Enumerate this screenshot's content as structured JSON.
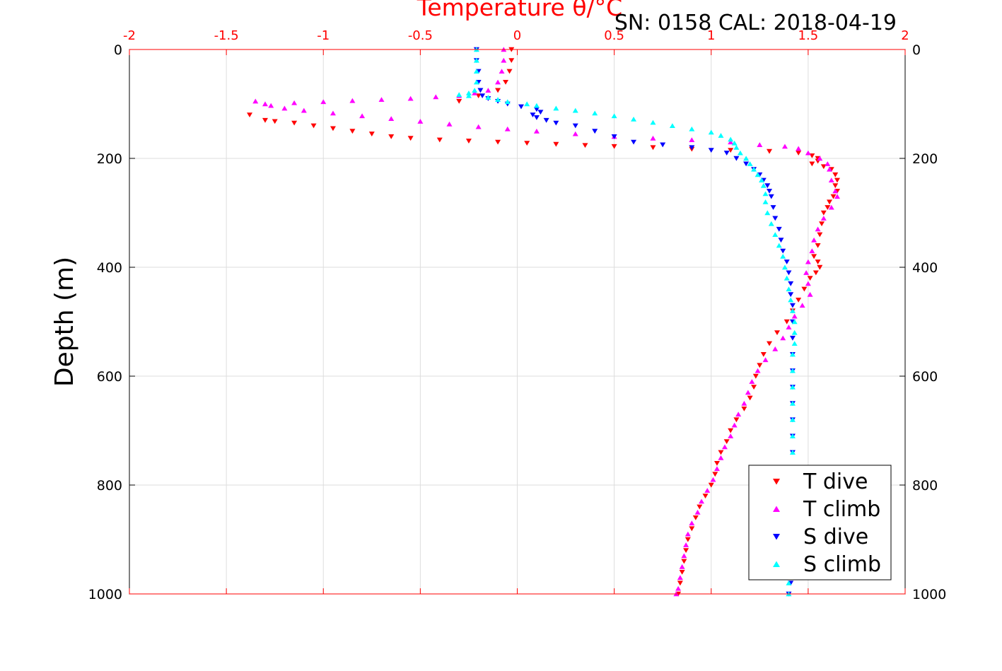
{
  "header": {
    "serial_cal": "SN: 0158  CAL: 2018-04-19"
  },
  "chart_data": {
    "type": "scatter",
    "title": "",
    "xlabel": "Temperature θ/°C",
    "ylabel": "Depth (m)",
    "xlim": [
      -2,
      2
    ],
    "ylim": [
      0,
      1000
    ],
    "y_reversed": true,
    "grid": true,
    "x_ticks": [
      "-2",
      "-1.5",
      "-1",
      "-0.5",
      "0",
      "0.5",
      "1",
      "1.5",
      "2"
    ],
    "y_ticks": [
      "0",
      "200",
      "400",
      "600",
      "800",
      "1000"
    ],
    "legend_position": "bottom-right",
    "colors": {
      "axis_top": "#ff0000",
      "axis_other": "#000000",
      "grid": "#dddddd"
    },
    "series": [
      {
        "name": "T dive",
        "marker": "triangle-down",
        "color": "#ff0000",
        "points": [
          [
            -0.03,
            0
          ],
          [
            -0.03,
            20
          ],
          [
            -0.04,
            40
          ],
          [
            -0.06,
            60
          ],
          [
            -0.1,
            75
          ],
          [
            -0.2,
            85
          ],
          [
            -0.3,
            95
          ],
          [
            -1.38,
            120
          ],
          [
            -1.3,
            130
          ],
          [
            -1.25,
            132
          ],
          [
            -1.15,
            135
          ],
          [
            -1.05,
            140
          ],
          [
            -0.95,
            145
          ],
          [
            -0.85,
            150
          ],
          [
            -0.75,
            155
          ],
          [
            -0.65,
            160
          ],
          [
            -0.55,
            163
          ],
          [
            -0.4,
            166
          ],
          [
            -0.25,
            168
          ],
          [
            -0.1,
            170
          ],
          [
            0.05,
            172
          ],
          [
            0.2,
            174
          ],
          [
            0.35,
            176
          ],
          [
            0.5,
            178
          ],
          [
            0.7,
            180
          ],
          [
            0.9,
            183
          ],
          [
            1.1,
            185
          ],
          [
            1.3,
            187
          ],
          [
            1.45,
            190
          ],
          [
            1.52,
            195
          ],
          [
            1.55,
            200
          ],
          [
            1.55,
            205
          ],
          [
            1.52,
            210
          ],
          [
            1.58,
            215
          ],
          [
            1.62,
            220
          ],
          [
            1.64,
            230
          ],
          [
            1.65,
            240
          ],
          [
            1.64,
            250
          ],
          [
            1.65,
            260
          ],
          [
            1.63,
            270
          ],
          [
            1.61,
            280
          ],
          [
            1.6,
            290
          ],
          [
            1.58,
            300
          ],
          [
            1.57,
            320
          ],
          [
            1.56,
            340
          ],
          [
            1.55,
            360
          ],
          [
            1.53,
            380
          ],
          [
            1.55,
            390
          ],
          [
            1.56,
            400
          ],
          [
            1.54,
            410
          ],
          [
            1.51,
            420
          ],
          [
            1.48,
            440
          ],
          [
            1.45,
            460
          ],
          [
            1.42,
            480
          ],
          [
            1.39,
            500
          ],
          [
            1.34,
            520
          ],
          [
            1.3,
            540
          ],
          [
            1.27,
            560
          ],
          [
            1.25,
            580
          ],
          [
            1.23,
            600
          ],
          [
            1.22,
            620
          ],
          [
            1.2,
            640
          ],
          [
            1.17,
            660
          ],
          [
            1.13,
            680
          ],
          [
            1.1,
            700
          ],
          [
            1.08,
            720
          ],
          [
            1.05,
            740
          ],
          [
            1.03,
            760
          ],
          [
            1.02,
            780
          ],
          [
            1.0,
            800
          ],
          [
            0.97,
            820
          ],
          [
            0.94,
            840
          ],
          [
            0.92,
            860
          ],
          [
            0.9,
            880
          ],
          [
            0.88,
            900
          ],
          [
            0.87,
            920
          ],
          [
            0.86,
            940
          ],
          [
            0.85,
            960
          ],
          [
            0.84,
            980
          ],
          [
            0.83,
            1000
          ]
        ]
      },
      {
        "name": "T climb",
        "marker": "triangle-up",
        "color": "#ff00ff",
        "points": [
          [
            -0.07,
            0
          ],
          [
            -0.07,
            20
          ],
          [
            -0.08,
            40
          ],
          [
            -0.1,
            60
          ],
          [
            -0.15,
            75
          ],
          [
            -0.22,
            80
          ],
          [
            -0.3,
            85
          ],
          [
            -0.42,
            87
          ],
          [
            -0.55,
            90
          ],
          [
            -0.7,
            92
          ],
          [
            -0.85,
            94
          ],
          [
            -1.0,
            96
          ],
          [
            -1.15,
            98
          ],
          [
            -1.3,
            100
          ],
          [
            -1.35,
            95
          ],
          [
            -1.27,
            103
          ],
          [
            -1.2,
            108
          ],
          [
            -1.1,
            112
          ],
          [
            -0.95,
            117
          ],
          [
            -0.8,
            122
          ],
          [
            -0.65,
            127
          ],
          [
            -0.5,
            132
          ],
          [
            -0.35,
            137
          ],
          [
            -0.2,
            142
          ],
          [
            -0.05,
            146
          ],
          [
            0.1,
            150
          ],
          [
            0.3,
            155
          ],
          [
            0.5,
            160
          ],
          [
            0.7,
            163
          ],
          [
            0.9,
            166
          ],
          [
            1.1,
            170
          ],
          [
            1.25,
            175
          ],
          [
            1.38,
            178
          ],
          [
            1.45,
            182
          ],
          [
            1.5,
            190
          ],
          [
            1.56,
            200
          ],
          [
            1.6,
            210
          ],
          [
            1.61,
            220
          ],
          [
            1.62,
            240
          ],
          [
            1.64,
            260
          ],
          [
            1.65,
            270
          ],
          [
            1.62,
            290
          ],
          [
            1.58,
            310
          ],
          [
            1.55,
            330
          ],
          [
            1.53,
            350
          ],
          [
            1.52,
            370
          ],
          [
            1.5,
            390
          ],
          [
            1.49,
            410
          ],
          [
            1.5,
            430
          ],
          [
            1.51,
            450
          ],
          [
            1.47,
            470
          ],
          [
            1.43,
            490
          ],
          [
            1.4,
            510
          ],
          [
            1.37,
            530
          ],
          [
            1.33,
            550
          ],
          [
            1.28,
            570
          ],
          [
            1.24,
            590
          ],
          [
            1.21,
            610
          ],
          [
            1.19,
            630
          ],
          [
            1.17,
            650
          ],
          [
            1.14,
            670
          ],
          [
            1.12,
            690
          ],
          [
            1.1,
            710
          ],
          [
            1.07,
            730
          ],
          [
            1.05,
            750
          ],
          [
            1.03,
            770
          ],
          [
            1.01,
            790
          ],
          [
            0.98,
            810
          ],
          [
            0.95,
            830
          ],
          [
            0.93,
            850
          ],
          [
            0.9,
            870
          ],
          [
            0.88,
            890
          ],
          [
            0.87,
            910
          ],
          [
            0.86,
            930
          ],
          [
            0.85,
            950
          ],
          [
            0.84,
            970
          ],
          [
            0.83,
            990
          ],
          [
            0.82,
            1000
          ]
        ]
      },
      {
        "name": "S dive",
        "marker": "triangle-down",
        "color": "#0000ff",
        "points": [
          [
            -0.21,
            0
          ],
          [
            -0.21,
            20
          ],
          [
            -0.2,
            40
          ],
          [
            -0.2,
            60
          ],
          [
            -0.19,
            75
          ],
          [
            -0.18,
            85
          ],
          [
            -0.15,
            90
          ],
          [
            -0.1,
            95
          ],
          [
            -0.05,
            100
          ],
          [
            0.02,
            105
          ],
          [
            0.1,
            110
          ],
          [
            0.12,
            115
          ],
          [
            0.08,
            120
          ],
          [
            0.1,
            125
          ],
          [
            0.15,
            130
          ],
          [
            0.2,
            135
          ],
          [
            0.3,
            140
          ],
          [
            0.4,
            150
          ],
          [
            0.5,
            160
          ],
          [
            0.6,
            170
          ],
          [
            0.75,
            175
          ],
          [
            0.9,
            180
          ],
          [
            1.0,
            185
          ],
          [
            1.08,
            190
          ],
          [
            1.13,
            200
          ],
          [
            1.18,
            210
          ],
          [
            1.22,
            220
          ],
          [
            1.25,
            230
          ],
          [
            1.27,
            240
          ],
          [
            1.29,
            250
          ],
          [
            1.3,
            260
          ],
          [
            1.31,
            270
          ],
          [
            1.32,
            290
          ],
          [
            1.33,
            310
          ],
          [
            1.35,
            330
          ],
          [
            1.36,
            350
          ],
          [
            1.37,
            370
          ],
          [
            1.39,
            390
          ],
          [
            1.4,
            410
          ],
          [
            1.41,
            430
          ],
          [
            1.41,
            450
          ],
          [
            1.42,
            470
          ],
          [
            1.42,
            500
          ],
          [
            1.42,
            530
          ],
          [
            1.42,
            560
          ],
          [
            1.42,
            590
          ],
          [
            1.42,
            620
          ],
          [
            1.42,
            650
          ],
          [
            1.42,
            680
          ],
          [
            1.42,
            710
          ],
          [
            1.42,
            740
          ],
          [
            1.42,
            770
          ],
          [
            1.42,
            800
          ],
          [
            1.42,
            830
          ],
          [
            1.42,
            860
          ],
          [
            1.42,
            890
          ],
          [
            1.41,
            920
          ],
          [
            1.41,
            950
          ],
          [
            1.41,
            980
          ],
          [
            1.4,
            1000
          ]
        ]
      },
      {
        "name": "S climb",
        "marker": "triangle-up",
        "color": "#00ffff",
        "points": [
          [
            -0.21,
            0
          ],
          [
            -0.21,
            20
          ],
          [
            -0.21,
            40
          ],
          [
            -0.21,
            60
          ],
          [
            -0.22,
            75
          ],
          [
            -0.25,
            80
          ],
          [
            -0.3,
            83
          ],
          [
            -0.25,
            85
          ],
          [
            -0.15,
            88
          ],
          [
            -0.1,
            92
          ],
          [
            -0.05,
            96
          ],
          [
            0.05,
            100
          ],
          [
            0.1,
            103
          ],
          [
            0.2,
            108
          ],
          [
            0.3,
            112
          ],
          [
            0.4,
            117
          ],
          [
            0.5,
            122
          ],
          [
            0.6,
            128
          ],
          [
            0.7,
            134
          ],
          [
            0.8,
            140
          ],
          [
            0.9,
            146
          ],
          [
            1.0,
            152
          ],
          [
            1.05,
            158
          ],
          [
            1.1,
            165
          ],
          [
            1.12,
            172
          ],
          [
            1.13,
            180
          ],
          [
            1.15,
            190
          ],
          [
            1.18,
            200
          ],
          [
            1.2,
            210
          ],
          [
            1.22,
            220
          ],
          [
            1.24,
            230
          ],
          [
            1.26,
            240
          ],
          [
            1.27,
            250
          ],
          [
            1.28,
            265
          ],
          [
            1.28,
            280
          ],
          [
            1.29,
            300
          ],
          [
            1.31,
            320
          ],
          [
            1.33,
            340
          ],
          [
            1.35,
            360
          ],
          [
            1.37,
            380
          ],
          [
            1.38,
            400
          ],
          [
            1.39,
            420
          ],
          [
            1.4,
            440
          ],
          [
            1.41,
            460
          ],
          [
            1.42,
            480
          ],
          [
            1.43,
            500
          ],
          [
            1.43,
            520
          ],
          [
            1.43,
            540
          ],
          [
            1.42,
            560
          ],
          [
            1.42,
            590
          ],
          [
            1.42,
            620
          ],
          [
            1.42,
            650
          ],
          [
            1.42,
            680
          ],
          [
            1.42,
            710
          ],
          [
            1.42,
            740
          ],
          [
            1.42,
            770
          ],
          [
            1.41,
            800
          ],
          [
            1.41,
            830
          ],
          [
            1.41,
            860
          ],
          [
            1.41,
            890
          ],
          [
            1.41,
            920
          ],
          [
            1.4,
            950
          ],
          [
            1.4,
            980
          ],
          [
            1.4,
            1000
          ]
        ]
      }
    ]
  }
}
